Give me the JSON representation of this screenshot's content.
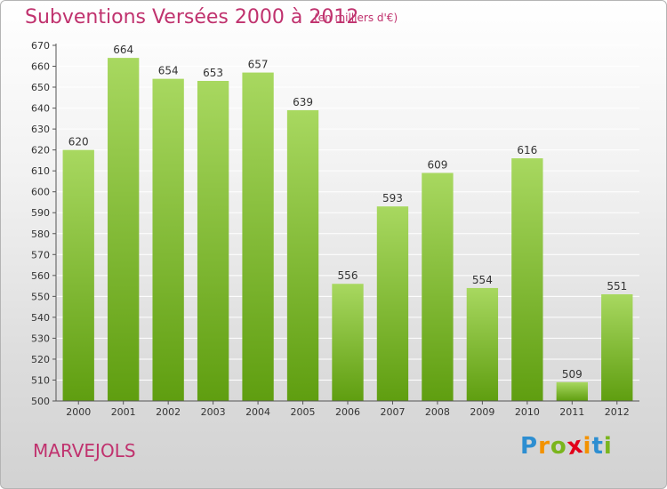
{
  "header": {
    "title": "Subventions Versées 2000 à 2012",
    "subtitle": "(en milliers d'€)"
  },
  "footer": {
    "town": "MARVEJOLS",
    "logo": {
      "letters": [
        "P",
        "r",
        "o",
        "x",
        "i",
        "t",
        "i"
      ],
      "colors": [
        "#2d8ed1",
        "#f39200",
        "#7ab51d",
        "#e2001a",
        "#f39200",
        "#2d8ed1",
        "#7ab51d"
      ]
    }
  },
  "colors": {
    "bar_light": "#a8d860",
    "bar_dark": "#5f9e10",
    "grid": "#ffffff",
    "axis_text": "#333333",
    "title": "#c0326e"
  },
  "chart_data": {
    "type": "bar",
    "categories": [
      "2000",
      "2001",
      "2002",
      "2003",
      "2004",
      "2005",
      "2006",
      "2007",
      "2008",
      "2009",
      "2010",
      "2011",
      "2012"
    ],
    "values": [
      620,
      664,
      654,
      653,
      657,
      639,
      556,
      593,
      609,
      554,
      616,
      509,
      551
    ],
    "title": "Subventions Versées 2000 à 2012",
    "ylim": [
      500,
      670
    ],
    "yticks": [
      500,
      510,
      520,
      530,
      540,
      550,
      560,
      570,
      580,
      590,
      600,
      610,
      620,
      630,
      640,
      650,
      660,
      670
    ],
    "grid": true,
    "legend": "none"
  }
}
